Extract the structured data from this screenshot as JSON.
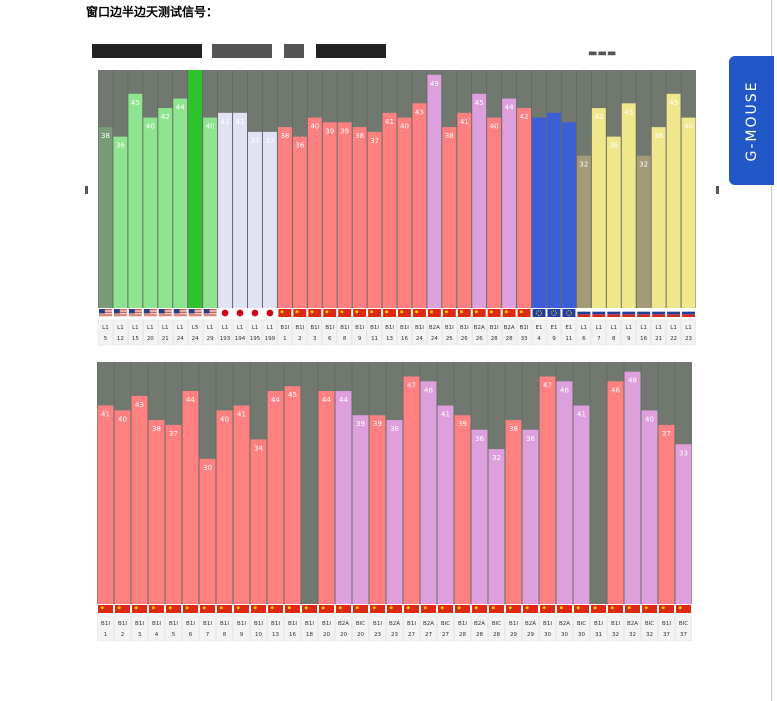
{
  "page": {
    "heading": "窗口边半边天测试信号："
  },
  "badge": {
    "label": "G-MOUSE"
  },
  "colors": {
    "background": "#707870",
    "us": "#8fe48f",
    "us_highlight": "#2ec42e",
    "us_first": "#7a9a7a",
    "jp": "#e2e2f5",
    "cn": "#ff8080",
    "b2a": "#dda0dd",
    "eu": "#3c5fd8",
    "ru": "#f0e68c",
    "ru_dark": "#a39a78"
  },
  "chart_data": [
    {
      "type": "bar",
      "ylim": [
        0,
        50
      ],
      "categories": [
        [
          "L1",
          "5"
        ],
        [
          "L1",
          "12"
        ],
        [
          "L1",
          "15"
        ],
        [
          "L1",
          "20"
        ],
        [
          "L1",
          "21"
        ],
        [
          "L1",
          "24"
        ],
        [
          "L5",
          "24"
        ],
        [
          "L1",
          "29"
        ],
        [
          "L1",
          "193"
        ],
        [
          "L1",
          "194"
        ],
        [
          "L1",
          "195"
        ],
        [
          "L1",
          "199"
        ],
        [
          "B1I",
          "1"
        ],
        [
          "B1I",
          "2"
        ],
        [
          "B1I",
          "3"
        ],
        [
          "B1I",
          "6"
        ],
        [
          "B1I",
          "8"
        ],
        [
          "B1I",
          "9"
        ],
        [
          "B1I",
          "11"
        ],
        [
          "B1I",
          "13"
        ],
        [
          "B1I",
          "16"
        ],
        [
          "B1I",
          "24"
        ],
        [
          "B2A",
          "24"
        ],
        [
          "B1I",
          "25"
        ],
        [
          "B1I",
          "26"
        ],
        [
          "B2A",
          "26"
        ],
        [
          "B1I",
          "28"
        ],
        [
          "B2A",
          "28"
        ],
        [
          "B1I",
          "33"
        ],
        [
          "E1",
          "4"
        ],
        [
          "E1",
          "9"
        ],
        [
          "E1",
          "11"
        ],
        [
          "L1",
          "6"
        ],
        [
          "L1",
          "7"
        ],
        [
          "L1",
          "8"
        ],
        [
          "L1",
          "9"
        ],
        [
          "L1",
          "16"
        ],
        [
          "L1",
          "21"
        ],
        [
          "L1",
          "22"
        ],
        [
          "L1",
          "23"
        ]
      ],
      "values": [
        38,
        36,
        45,
        40,
        42,
        44,
        50,
        40,
        41,
        41,
        37,
        37,
        38,
        36,
        40,
        39,
        39,
        38,
        37,
        41,
        40,
        43,
        49,
        38,
        41,
        45,
        40,
        44,
        42,
        40,
        41,
        39,
        32,
        42,
        36,
        43,
        32,
        38,
        45,
        40
      ],
      "show_label": [
        true,
        true,
        true,
        true,
        true,
        true,
        false,
        true,
        true,
        true,
        true,
        true,
        true,
        true,
        true,
        true,
        true,
        true,
        true,
        true,
        true,
        true,
        true,
        true,
        true,
        true,
        true,
        true,
        true,
        false,
        false,
        false,
        true,
        true,
        true,
        true,
        true,
        true,
        true,
        true
      ],
      "color_keys": [
        "us_first",
        "us",
        "us",
        "us",
        "us",
        "us",
        "us_highlight",
        "us",
        "jp",
        "jp",
        "jp",
        "jp",
        "cn",
        "cn",
        "cn",
        "cn",
        "cn",
        "cn",
        "cn",
        "cn",
        "cn",
        "cn",
        "b2a",
        "cn",
        "cn",
        "b2a",
        "cn",
        "b2a",
        "cn",
        "eu",
        "eu",
        "eu",
        "ru_dark",
        "ru",
        "ru",
        "ru",
        "ru_dark",
        "ru",
        "ru",
        "ru"
      ],
      "flags": [
        "us",
        "us",
        "us",
        "us",
        "us",
        "us",
        "us",
        "us",
        "jp",
        "jp",
        "jp",
        "jp",
        "cn",
        "cn",
        "cn",
        "cn",
        "cn",
        "cn",
        "cn",
        "cn",
        "cn",
        "cn",
        "cn",
        "cn",
        "cn",
        "cn",
        "cn",
        "cn",
        "cn",
        "eu",
        "eu",
        "eu",
        "ru",
        "ru",
        "ru",
        "ru",
        "ru",
        "ru",
        "ru",
        "ru"
      ]
    },
    {
      "type": "bar",
      "ylim": [
        0,
        50
      ],
      "categories": [
        [
          "B1I",
          "1"
        ],
        [
          "B1I",
          "2"
        ],
        [
          "B1I",
          "3"
        ],
        [
          "B1I",
          "4"
        ],
        [
          "B1I",
          "5"
        ],
        [
          "B1I",
          "6"
        ],
        [
          "B1I",
          "7"
        ],
        [
          "B1I",
          "8"
        ],
        [
          "B1I",
          "9"
        ],
        [
          "B1I",
          "10"
        ],
        [
          "B1I",
          "13"
        ],
        [
          "B1I",
          "16"
        ],
        [
          "B1I",
          "18"
        ],
        [
          "B1I",
          "20"
        ],
        [
          "B2A",
          "20"
        ],
        [
          "BIC",
          "20"
        ],
        [
          "B1I",
          "23"
        ],
        [
          "B2A",
          "23"
        ],
        [
          "B1I",
          "27"
        ],
        [
          "B2A",
          "27"
        ],
        [
          "BIC",
          "27"
        ],
        [
          "B1I",
          "28"
        ],
        [
          "B2A",
          "28"
        ],
        [
          "BIC",
          "28"
        ],
        [
          "B1I",
          "29"
        ],
        [
          "B2A",
          "29"
        ],
        [
          "B1I",
          "30"
        ],
        [
          "B2A",
          "30"
        ],
        [
          "BIC",
          "30"
        ],
        [
          "B1I",
          "31"
        ],
        [
          "B1I",
          "32"
        ],
        [
          "B2A",
          "32"
        ],
        [
          "BIC",
          "32"
        ],
        [
          "B1I",
          "37"
        ],
        [
          "BIC",
          "37"
        ]
      ],
      "values": [
        41,
        40,
        43,
        38,
        37,
        44,
        30,
        40,
        41,
        34,
        44,
        45,
        0,
        44,
        44,
        39,
        39,
        38,
        47,
        46,
        41,
        39,
        36,
        32,
        38,
        36,
        47,
        46,
        41,
        0,
        46,
        48,
        40,
        37,
        33
      ],
      "show_label": [
        true,
        true,
        true,
        true,
        true,
        true,
        true,
        true,
        true,
        true,
        true,
        true,
        false,
        true,
        true,
        true,
        true,
        true,
        true,
        true,
        true,
        true,
        true,
        true,
        true,
        true,
        true,
        true,
        true,
        false,
        true,
        true,
        true,
        true,
        true
      ],
      "color_keys": [
        "cn",
        "cn",
        "cn",
        "cn",
        "cn",
        "cn",
        "cn",
        "cn",
        "cn",
        "cn",
        "cn",
        "cn",
        "cn",
        "cn",
        "b2a",
        "b2a",
        "cn",
        "b2a",
        "cn",
        "b2a",
        "b2a",
        "cn",
        "b2a",
        "b2a",
        "cn",
        "b2a",
        "cn",
        "b2a",
        "b2a",
        "cn",
        "cn",
        "b2a",
        "b2a",
        "cn",
        "b2a"
      ],
      "flags": [
        "cn",
        "cn",
        "cn",
        "cn",
        "cn",
        "cn",
        "cn",
        "cn",
        "cn",
        "cn",
        "cn",
        "cn",
        "cn",
        "cn",
        "cn",
        "cn",
        "cn",
        "cn",
        "cn",
        "cn",
        "cn",
        "cn",
        "cn",
        "cn",
        "cn",
        "cn",
        "cn",
        "cn",
        "cn",
        "cn",
        "cn",
        "cn",
        "cn",
        "cn",
        "cn"
      ]
    }
  ]
}
